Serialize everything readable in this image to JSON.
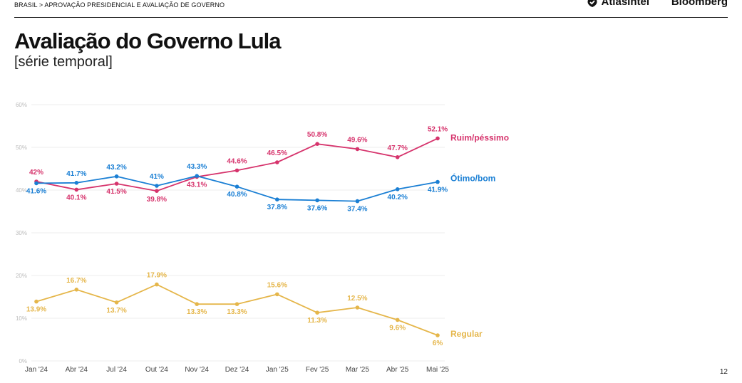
{
  "header": {
    "breadcrumb": "BRASIL > APROVAÇÃO PRESIDENCIAL E AVALIAÇÃO DE GOVERNO",
    "brand_atlas": "AtlasIntel",
    "brand_bloomberg": "Bloomberg"
  },
  "title": "Avaliação do Governo Lula",
  "subtitle": "[série temporal]",
  "page_number": "12",
  "colors": {
    "ruim": "#d6336c",
    "otimo": "#1a7fd4",
    "regular": "#e5b64a",
    "grid": "#ececec",
    "tick": "#bbbbbb"
  },
  "chart_data": {
    "type": "line",
    "title": "",
    "xlabel": "",
    "ylabel": "",
    "ylim": [
      0,
      60
    ],
    "y_ticks": [
      "0%",
      "10%",
      "20%",
      "30%",
      "40%",
      "50%",
      "60%"
    ],
    "grid": true,
    "categories": [
      "Jan '24",
      "Abr '24",
      "Jul '24",
      "Out '24",
      "Nov '24",
      "Dez '24",
      "Jan '25",
      "Fev '25",
      "Mar '25",
      "Abr '25",
      "Mai '25"
    ],
    "series": [
      {
        "key": "ruim",
        "name": "Ruim/péssimo",
        "values": [
          42,
          40.1,
          41.5,
          39.8,
          43.1,
          44.6,
          46.5,
          50.8,
          49.6,
          47.7,
          52.1
        ],
        "labels": [
          "42%",
          "40.1%",
          "41.5%",
          "39.8%",
          "43.1%",
          "44.6%",
          "46.5%",
          "50.8%",
          "49.6%",
          "47.7%",
          "52.1%"
        ]
      },
      {
        "key": "otimo",
        "name": "Ótimo/bom",
        "values": [
          41.6,
          41.7,
          43.2,
          41,
          43.3,
          40.8,
          37.8,
          37.6,
          37.4,
          40.2,
          41.9
        ],
        "labels": [
          "41.6%",
          "41.7%",
          "43.2%",
          "41%",
          "43.3%",
          "40.8%",
          "37.8%",
          "37.6%",
          "37.4%",
          "40.2%",
          "41.9%"
        ]
      },
      {
        "key": "regular",
        "name": "Regular",
        "values": [
          13.9,
          16.7,
          13.7,
          17.9,
          13.3,
          13.3,
          15.6,
          11.3,
          12.5,
          9.6,
          6
        ],
        "labels": [
          "13.9%",
          "16.7%",
          "13.7%",
          "17.9%",
          "13.3%",
          "13.3%",
          "15.6%",
          "11.3%",
          "12.5%",
          "9.6%",
          "6%"
        ]
      }
    ]
  }
}
